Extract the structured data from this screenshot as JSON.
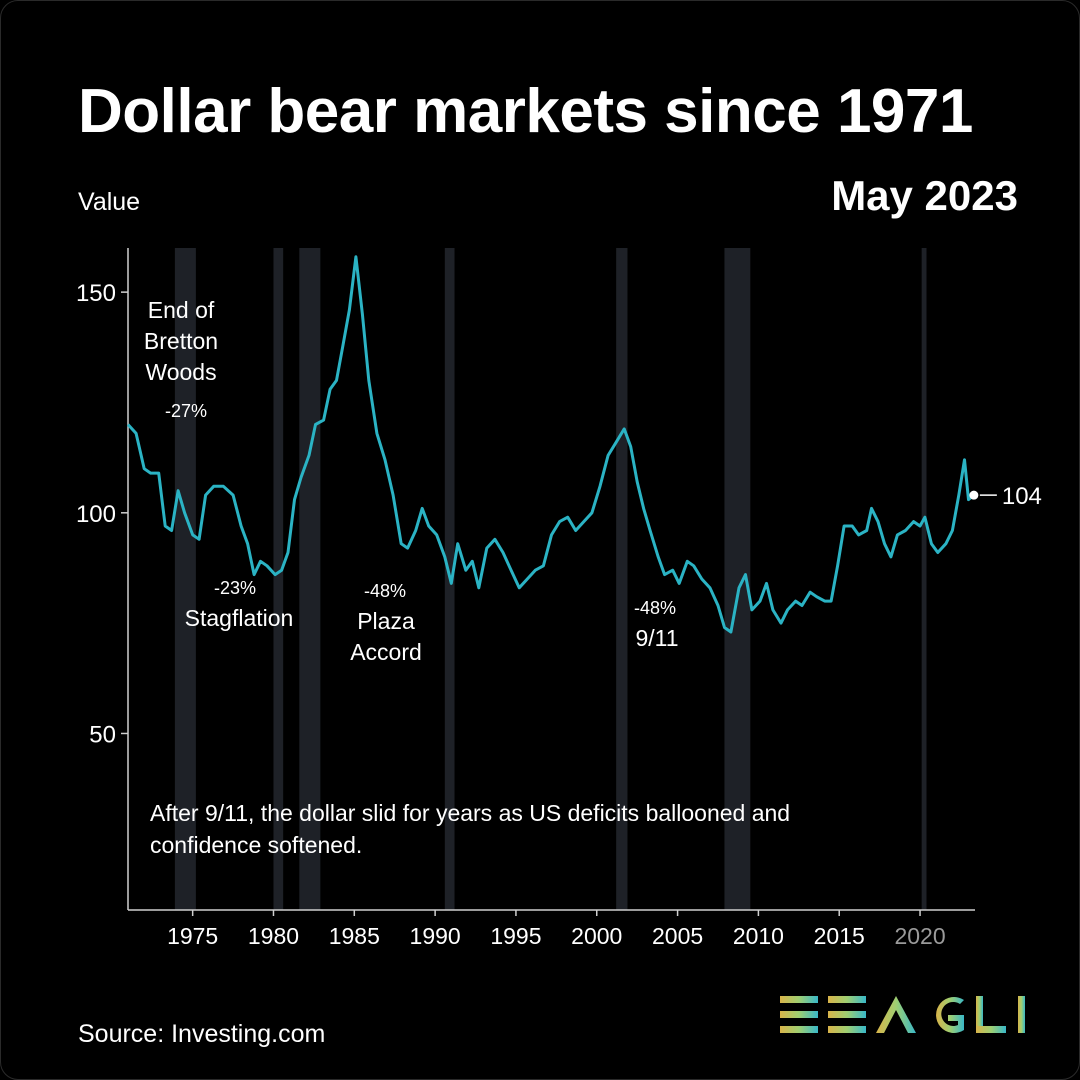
{
  "title": "Dollar bear markets since 1971",
  "date_label": "May 2023",
  "source": "Source: Investing.com",
  "logo_text": "EEAGLI",
  "colors": {
    "line": "#2bb3c4",
    "band": "#1e2127",
    "background": "#000000",
    "text": "#ffffff"
  },
  "chart_data": {
    "type": "line",
    "title": "Dollar bear markets since 1971",
    "ylabel": "Value",
    "xlabel": "",
    "xlim": [
      1971,
      2023.4
    ],
    "ylim": [
      10,
      160
    ],
    "yticks": [
      50,
      100,
      150
    ],
    "xticks": [
      1975,
      1980,
      1985,
      1990,
      1995,
      2000,
      2005,
      2010,
      2015,
      2020
    ],
    "grid": false,
    "last_value": {
      "year": 2023.33,
      "value": 104,
      "label": "104"
    },
    "recession_bands": [
      [
        1973.9,
        1975.2
      ],
      [
        1980.0,
        1980.6
      ],
      [
        1981.6,
        1982.9
      ],
      [
        1990.6,
        1991.2
      ],
      [
        2001.2,
        2001.9
      ],
      [
        2007.9,
        2009.5
      ],
      [
        2020.1,
        2020.4
      ]
    ],
    "series": [
      {
        "values": [
          [
            1971.0,
            120
          ],
          [
            1971.5,
            118
          ],
          [
            1972.0,
            110
          ],
          [
            1972.4,
            109
          ],
          [
            1972.9,
            109
          ],
          [
            1973.3,
            97
          ],
          [
            1973.7,
            96
          ],
          [
            1974.1,
            105
          ],
          [
            1974.5,
            100
          ],
          [
            1975.0,
            95
          ],
          [
            1975.4,
            94
          ],
          [
            1975.8,
            104
          ],
          [
            1976.3,
            106
          ],
          [
            1976.9,
            106
          ],
          [
            1977.5,
            104
          ],
          [
            1978.0,
            97
          ],
          [
            1978.4,
            93
          ],
          [
            1978.8,
            86
          ],
          [
            1979.2,
            89
          ],
          [
            1979.6,
            88
          ],
          [
            1980.1,
            86
          ],
          [
            1980.5,
            87
          ],
          [
            1980.9,
            91
          ],
          [
            1981.3,
            103
          ],
          [
            1981.7,
            108
          ],
          [
            1982.2,
            113
          ],
          [
            1982.6,
            120
          ],
          [
            1983.1,
            121
          ],
          [
            1983.5,
            128
          ],
          [
            1983.9,
            130
          ],
          [
            1984.3,
            138
          ],
          [
            1984.7,
            146
          ],
          [
            1985.1,
            158
          ],
          [
            1985.5,
            145
          ],
          [
            1985.9,
            130
          ],
          [
            1986.4,
            118
          ],
          [
            1986.9,
            112
          ],
          [
            1987.4,
            104
          ],
          [
            1987.9,
            93
          ],
          [
            1988.3,
            92
          ],
          [
            1988.8,
            96
          ],
          [
            1989.2,
            101
          ],
          [
            1989.6,
            97
          ],
          [
            1990.1,
            95
          ],
          [
            1990.6,
            90
          ],
          [
            1991.0,
            84
          ],
          [
            1991.4,
            93
          ],
          [
            1991.9,
            87
          ],
          [
            1992.3,
            89
          ],
          [
            1992.7,
            83
          ],
          [
            1993.2,
            92
          ],
          [
            1993.7,
            94
          ],
          [
            1994.2,
            91
          ],
          [
            1994.7,
            87
          ],
          [
            1995.2,
            83
          ],
          [
            1995.7,
            85
          ],
          [
            1996.2,
            87
          ],
          [
            1996.7,
            88
          ],
          [
            1997.2,
            95
          ],
          [
            1997.7,
            98
          ],
          [
            1998.2,
            99
          ],
          [
            1998.7,
            96
          ],
          [
            1999.2,
            98
          ],
          [
            1999.7,
            100
          ],
          [
            2000.2,
            106
          ],
          [
            2000.7,
            113
          ],
          [
            2001.2,
            116
          ],
          [
            2001.7,
            119
          ],
          [
            2002.1,
            115
          ],
          [
            2002.5,
            107
          ],
          [
            2002.9,
            101
          ],
          [
            2003.3,
            96
          ],
          [
            2003.8,
            90
          ],
          [
            2004.2,
            86
          ],
          [
            2004.7,
            87
          ],
          [
            2005.1,
            84
          ],
          [
            2005.6,
            89
          ],
          [
            2006.0,
            88
          ],
          [
            2006.5,
            85
          ],
          [
            2007.0,
            83
          ],
          [
            2007.5,
            79
          ],
          [
            2007.9,
            74
          ],
          [
            2008.3,
            73
          ],
          [
            2008.8,
            83
          ],
          [
            2009.2,
            86
          ],
          [
            2009.6,
            78
          ],
          [
            2010.1,
            80
          ],
          [
            2010.5,
            84
          ],
          [
            2010.9,
            78
          ],
          [
            2011.4,
            75
          ],
          [
            2011.8,
            78
          ],
          [
            2012.3,
            80
          ],
          [
            2012.7,
            79
          ],
          [
            2013.2,
            82
          ],
          [
            2013.6,
            81
          ],
          [
            2014.1,
            80
          ],
          [
            2014.5,
            80
          ],
          [
            2014.9,
            88
          ],
          [
            2015.3,
            97
          ],
          [
            2015.8,
            97
          ],
          [
            2016.2,
            95
          ],
          [
            2016.7,
            96
          ],
          [
            2017.0,
            101
          ],
          [
            2017.4,
            98
          ],
          [
            2017.8,
            93
          ],
          [
            2018.2,
            90
          ],
          [
            2018.6,
            95
          ],
          [
            2019.1,
            96
          ],
          [
            2019.6,
            98
          ],
          [
            2020.0,
            97
          ],
          [
            2020.3,
            99
          ],
          [
            2020.7,
            93
          ],
          [
            2021.1,
            91
          ],
          [
            2021.6,
            93
          ],
          [
            2022.0,
            96
          ],
          [
            2022.4,
            104
          ],
          [
            2022.75,
            112
          ],
          [
            2023.0,
            103
          ],
          [
            2023.33,
            104
          ]
        ]
      }
    ],
    "annotations": [
      {
        "lines": [
          "End of",
          "Bretton",
          "Woods"
        ],
        "pct": "-27%"
      },
      {
        "lines": [
          "Stagflation"
        ],
        "pct": "-23%"
      },
      {
        "lines": [
          "Plaza",
          "Accord"
        ],
        "pct": "-48%"
      },
      {
        "lines": [
          "9/11"
        ],
        "pct": "-48%"
      }
    ],
    "note_lines": [
      "After 9/11, the dollar slid for years as US deficits ballooned and",
      "confidence softened."
    ]
  }
}
